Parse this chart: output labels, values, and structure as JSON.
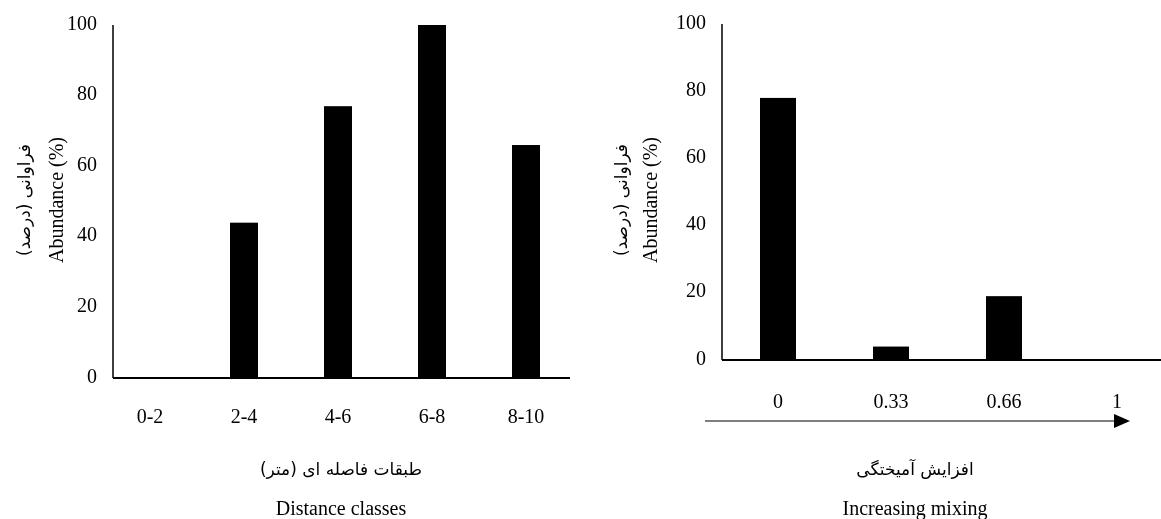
{
  "chart_data": [
    {
      "type": "bar",
      "categories": [
        "0-2",
        "2-4",
        "4-6",
        "6-8",
        "8-10"
      ],
      "values": [
        0,
        44,
        77,
        100,
        66
      ],
      "color": "#000000",
      "ylim": [
        0,
        100
      ],
      "yticks": [
        0,
        20,
        40,
        60,
        80,
        100
      ],
      "xlabel": "Distance classes",
      "ylabel": "Abundance (%)",
      "annotations": [
        "طبقات فاصله ای (متر)",
        "فراوانی (درصد)"
      ]
    },
    {
      "type": "bar",
      "categories": [
        "0",
        "0.33",
        "0.66",
        "1"
      ],
      "values": [
        78,
        4,
        19,
        0
      ],
      "color": "#000000",
      "ylim": [
        0,
        100
      ],
      "yticks": [
        0,
        20,
        40,
        60,
        80,
        100
      ],
      "xlabel": "Increasing mixing",
      "ylabel": "Abundance (%)",
      "annotations": [
        "افزایش آمیختگی",
        "فراوانی (درصد)"
      ]
    }
  ]
}
